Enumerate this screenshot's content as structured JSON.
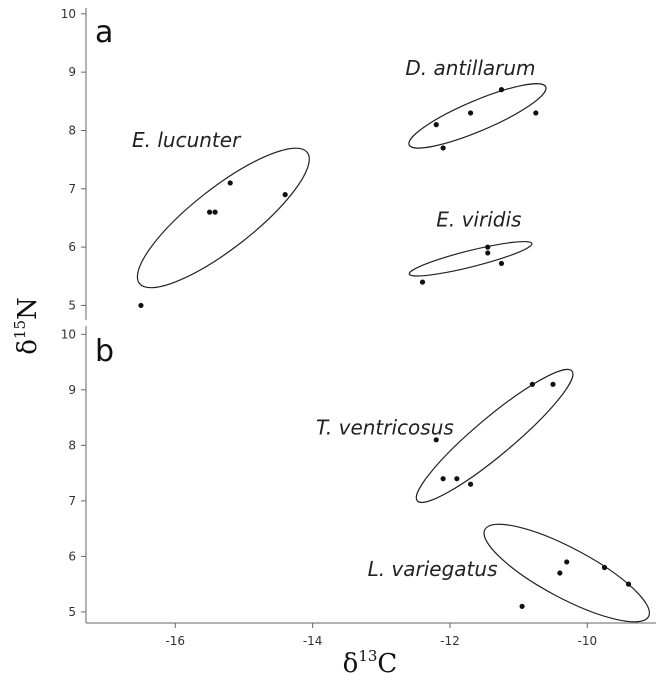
{
  "chart_data": {
    "type": "scatter",
    "x_axis": {
      "label_symbol": "δ",
      "label_sup": "13",
      "label_elem": "C",
      "xlim": [
        -17.3,
        -9.0
      ],
      "ticks": [
        "-16",
        "-14",
        "-12",
        "-10"
      ],
      "tick_values": [
        -16,
        -14,
        -12,
        -10
      ]
    },
    "y_axis": {
      "label_symbol": "δ",
      "label_sup": "15",
      "label_elem": "N"
    },
    "panels": [
      {
        "letter": "a",
        "ylim": [
          4.75,
          10.1
        ],
        "y_ticks": [
          "5",
          "6",
          "7",
          "8",
          "9",
          "10"
        ],
        "y_tick_values": [
          5,
          6,
          7,
          8,
          9,
          10
        ],
        "series": [
          {
            "name": "E. lucunter",
            "points": [
              [
                -16.5,
                5.0
              ],
              [
                -15.5,
                6.6
              ],
              [
                -15.42,
                6.6
              ],
              [
                -15.2,
                7.1
              ],
              [
                -14.4,
                6.9
              ]
            ],
            "ellipse": {
              "center": [
                -15.3,
                6.5
              ],
              "rx_data": 1.55,
              "ry_data": 0.52,
              "angle_deg": -38
            },
            "label_at": [
              -16.63,
              7.72
            ]
          },
          {
            "name": "D. antillarum",
            "points": [
              [
                -12.2,
                8.1
              ],
              [
                -12.1,
                7.7
              ],
              [
                -11.7,
                8.3
              ],
              [
                -11.25,
                8.7
              ],
              [
                -10.75,
                8.3
              ]
            ],
            "ellipse": {
              "center": [
                -11.6,
                8.25
              ],
              "rx_data": 1.08,
              "ry_data": 0.26,
              "angle_deg": -23
            },
            "label_at": [
              -12.65,
              8.95
            ]
          },
          {
            "name": "E. viridis",
            "points": [
              [
                -12.4,
                5.4
              ],
              [
                -11.45,
                6.0
              ],
              [
                -11.45,
                5.9
              ],
              [
                -11.25,
                5.72
              ]
            ],
            "ellipse": {
              "center": [
                -11.7,
                5.8
              ],
              "rx_data": 0.92,
              "ry_data": 0.14,
              "angle_deg": -14
            },
            "label_at": [
              -12.2,
              6.35
            ]
          }
        ]
      },
      {
        "letter": "b",
        "ylim": [
          4.8,
          10.15
        ],
        "y_ticks": [
          "5",
          "6",
          "7",
          "8",
          "9",
          "10"
        ],
        "y_tick_values": [
          5,
          6,
          7,
          8,
          9,
          10
        ],
        "series": [
          {
            "name": "T. ventricosus",
            "points": [
              [
                -12.2,
                8.1
              ],
              [
                -12.1,
                7.4
              ],
              [
                -11.9,
                7.4
              ],
              [
                -11.7,
                7.3
              ],
              [
                -10.8,
                9.1
              ],
              [
                -10.5,
                9.1
              ]
            ],
            "ellipse": {
              "center": [
                -11.35,
                8.17
              ],
              "rx_data": 1.47,
              "ry_data": 0.34,
              "angle_deg": -40
            },
            "label_at": [
              -13.95,
              8.2
            ]
          },
          {
            "name": "L. variegatus",
            "points": [
              [
                -10.95,
                5.1
              ],
              [
                -10.4,
                5.7
              ],
              [
                -10.3,
                5.9
              ],
              [
                -9.75,
                5.8
              ],
              [
                -9.4,
                5.5
              ]
            ],
            "ellipse": {
              "center": [
                -10.3,
                5.7
              ],
              "rx_data": 1.35,
              "ry_data": 0.45,
              "angle_deg": 28
            },
            "label_at": [
              -13.2,
              5.65
            ]
          }
        ]
      }
    ]
  }
}
